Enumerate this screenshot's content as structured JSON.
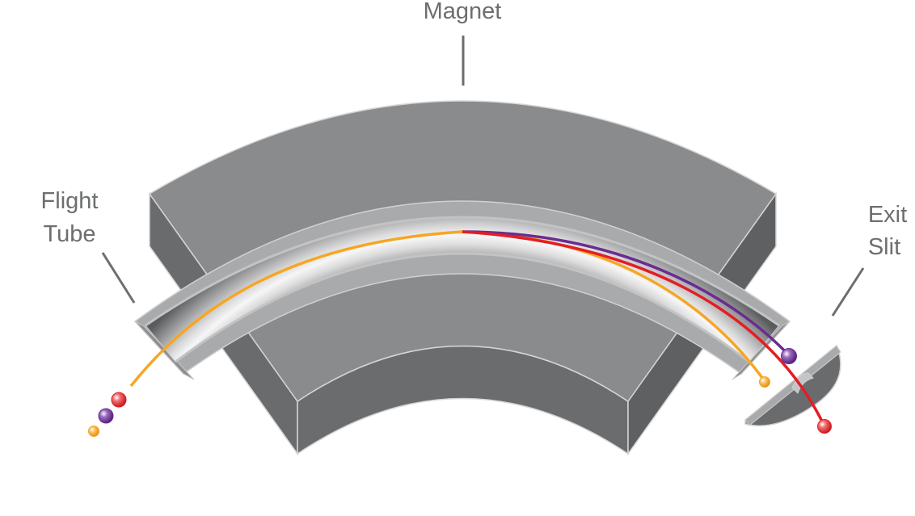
{
  "labels": {
    "magnet": "Magnet",
    "flight_tube_line1": "Flight",
    "flight_tube_line2": "Tube",
    "exit_slit_line1": "Exit",
    "exit_slit_line2": "Slit"
  },
  "colors": {
    "magnet_top": "#8a8b8c",
    "magnet_side_dark": "#5f6062",
    "magnet_side_mid": "#747577",
    "tube_wall": "#a9aaac",
    "tube_groove_light": "#f4f4f4",
    "tube_groove_dark": "#5a5b5d",
    "ion_heavy": "#f6a623",
    "ion_medium": "#6a2c91",
    "ion_light": "#e31e24",
    "label_text": "#6d6e70"
  },
  "ions": [
    {
      "name": "orange-ion",
      "color": "#f6a623"
    },
    {
      "name": "purple-ion",
      "color": "#6a2c91"
    },
    {
      "name": "red-ion",
      "color": "#e31e24"
    }
  ]
}
